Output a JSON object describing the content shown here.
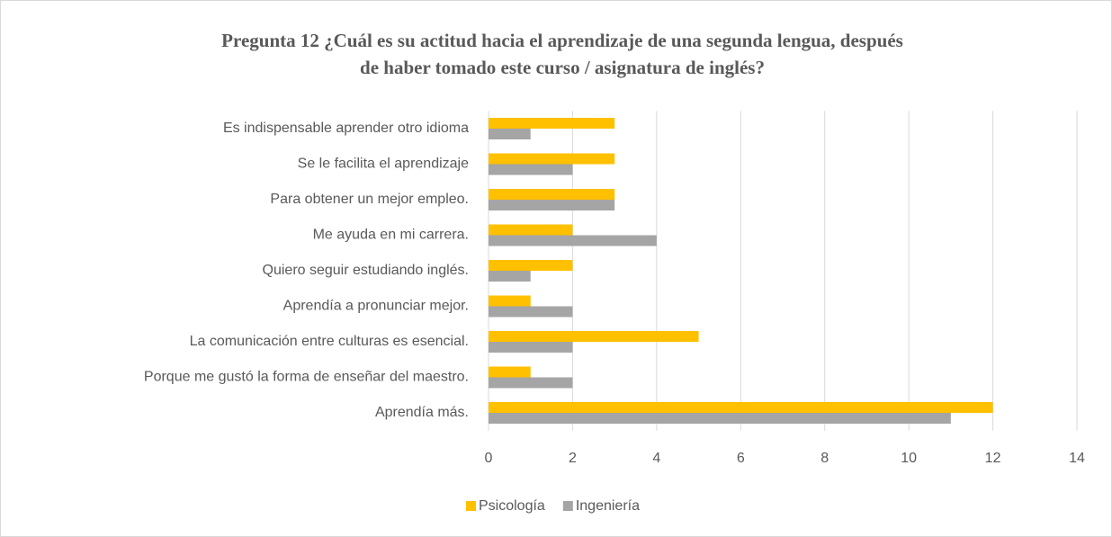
{
  "chart_data": {
    "type": "barh",
    "title": [
      "Pregunta 12 ¿Cuál es su actitud hacia el aprendizaje de una segunda lengua, después",
      "de haber tomado este curso / asignatura de inglés?"
    ],
    "categories": [
      "Es indispensable aprender otro idioma",
      "Se le facilita el aprendizaje",
      "Para obtener un mejor empleo.",
      "Me ayuda en mi carrera.",
      "Quiero seguir estudiando inglés.",
      "Aprendía a pronunciar mejor.",
      "La comunicación entre culturas es esencial.",
      "Porque me gustó la forma de enseñar del maestro.",
      "Aprendía más."
    ],
    "series": [
      {
        "name": "Psicología",
        "color": "#ffc000",
        "values": [
          3,
          3,
          3,
          2,
          2,
          1,
          5,
          1,
          12
        ]
      },
      {
        "name": "Ingeniería",
        "color": "#a5a5a5",
        "values": [
          1,
          2,
          3,
          4,
          1,
          2,
          2,
          2,
          11
        ]
      }
    ],
    "xlim": [
      0,
      14
    ],
    "xticks": [
      0,
      2,
      4,
      6,
      8,
      10,
      12,
      14
    ],
    "grid": true,
    "legend": "bottom"
  }
}
